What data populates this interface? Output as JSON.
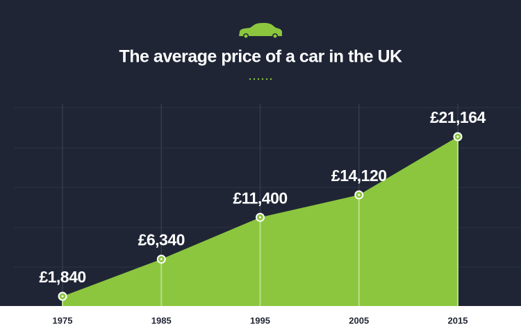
{
  "chart_data": {
    "type": "area",
    "title": "The average price of a car in the UK",
    "categories": [
      "1975",
      "1985",
      "1995",
      "2005",
      "2015"
    ],
    "values": [
      1840,
      6340,
      11400,
      14120,
      21164
    ],
    "value_labels": [
      "£1,840",
      "£6,340",
      "£11,400",
      "£14,120",
      "£21,164"
    ],
    "color": "#8cc63f"
  }
}
